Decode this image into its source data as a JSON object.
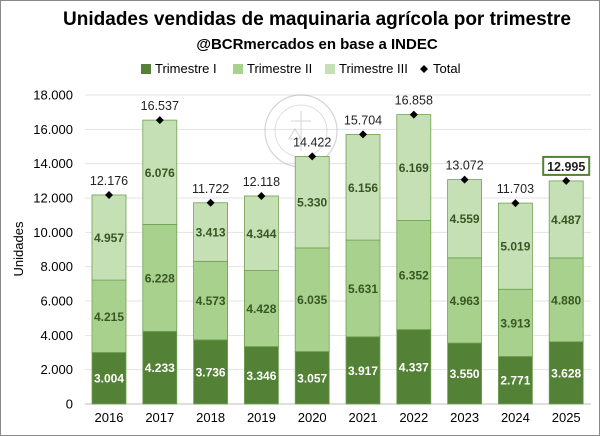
{
  "chart_data": {
    "type": "bar",
    "stacked": true,
    "title": "Unidades vendidas de maquinaria agrícola por trimestre",
    "subtitle": "@BCRmercados en base a INDEC",
    "xlabel": "",
    "ylabel": "Unidades",
    "ylim": [
      0,
      18000
    ],
    "yticks": [
      "0",
      "2.000",
      "4.000",
      "6.000",
      "8.000",
      "10.000",
      "12.000",
      "14.000",
      "16.000",
      "18.000"
    ],
    "grid": true,
    "legend_position": "top",
    "categories": [
      "2016",
      "2017",
      "2018",
      "2019",
      "2020",
      "2021",
      "2022",
      "2023",
      "2024",
      "2025"
    ],
    "series": [
      {
        "name": "Trimestre I",
        "color": "#538135",
        "label_color": "#ffffff",
        "values": [
          3004,
          4233,
          3736,
          3346,
          3057,
          3917,
          4337,
          3550,
          2771,
          3628
        ],
        "labels": [
          "3.004",
          "4.233",
          "3.736",
          "3.346",
          "3.057",
          "3.917",
          "4.337",
          "3.550",
          "2.771",
          "3.628"
        ]
      },
      {
        "name": "Trimestre II",
        "color": "#a9d18e",
        "label_color": "#375623",
        "values": [
          4215,
          6228,
          4573,
          4428,
          6035,
          5631,
          6352,
          4963,
          3913,
          4880
        ],
        "labels": [
          "4.215",
          "6.228",
          "4.573",
          "4.428",
          "6.035",
          "5.631",
          "6.352",
          "4.963",
          "3.913",
          "4.880"
        ]
      },
      {
        "name": "Trimestre III",
        "color": "#c5e0b4",
        "label_color": "#375623",
        "values": [
          4957,
          6076,
          3413,
          4344,
          5330,
          6156,
          6169,
          4559,
          5019,
          4487
        ],
        "labels": [
          "4.957",
          "6.076",
          "3.413",
          "4.344",
          "5.330",
          "6.156",
          "6.169",
          "4.559",
          "5.019",
          "4.487"
        ]
      }
    ],
    "total": {
      "name": "Total",
      "marker": "diamond",
      "color": "#000000",
      "values": [
        12176,
        16537,
        11722,
        12118,
        14422,
        15704,
        16858,
        13072,
        11703,
        12995
      ],
      "labels": [
        "12.176",
        "16.537",
        "11.722",
        "12.118",
        "14.422",
        "15.704",
        "16.858",
        "13.072",
        "11.703",
        "12.995"
      ],
      "highlighted_label": "12.995"
    },
    "watermark": "BOLSA DE COMERCIO DE ROSARIO"
  }
}
